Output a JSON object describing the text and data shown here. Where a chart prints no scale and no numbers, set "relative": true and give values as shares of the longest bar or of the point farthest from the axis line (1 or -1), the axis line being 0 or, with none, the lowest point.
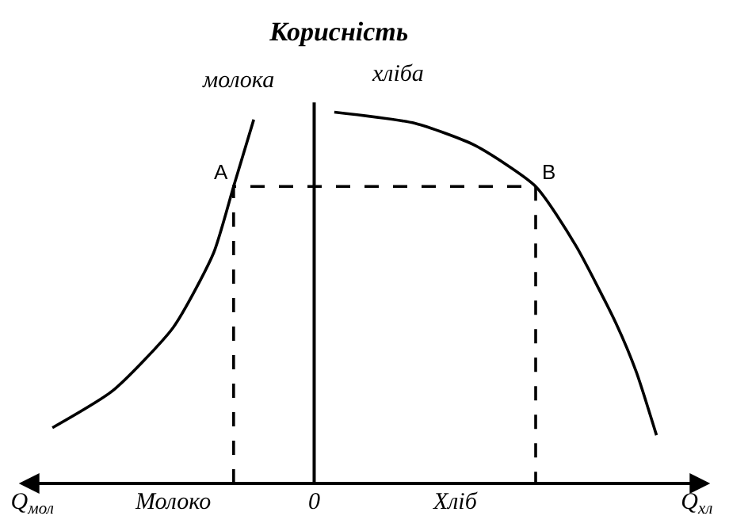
{
  "chart_data": {
    "type": "line",
    "title": "Корисність",
    "relative": true,
    "legend": false,
    "marker": "none",
    "grid": false,
    "categories": [
      "Q$_{мол}$",
      null,
      null,
      null,
      null,
      null,
      null,
      "Молоко",
      null,
      null,
      null,
      null,
      null,
      null,
      "0",
      null,
      null,
      null,
      null,
      null,
      null,
      "Хліб",
      null,
      null,
      null,
      null,
      null,
      null,
      null,
      null,
      null,
      null,
      null,
      "Q$_{хл}$"
    ],
    "series": [
      {
        "name": "молока",
        "color": "#000000",
        "values": [
          null,
          0.15,
          null,
          null,
          0.25,
          null,
          null,
          0.42,
          null,
          0.62,
          0.8,
          0.98,
          null,
          null,
          null,
          null,
          null,
          null,
          null,
          null,
          null,
          null,
          null,
          null,
          null,
          null,
          null,
          null,
          null,
          null,
          null,
          null,
          null,
          null
        ]
      },
      {
        "name": "хліба",
        "color": "#000000",
        "values": [
          null,
          null,
          null,
          null,
          null,
          null,
          null,
          null,
          null,
          null,
          null,
          null,
          null,
          null,
          null,
          1.0,
          null,
          null,
          null,
          0.97,
          null,
          null,
          0.91,
          null,
          null,
          0.8,
          null,
          0.64,
          null,
          0.43,
          0.3,
          0.13,
          null,
          null
        ]
      },
      {
        "type": "step",
        "color": "#000000",
        "line_style": "dashed",
        "values": [
          null,
          null,
          null,
          null,
          null,
          null,
          null,
          null,
          null,
          null,
          0,
          0.8,
          0.8,
          0.8,
          0.8,
          0.8,
          0.8,
          0.8,
          0.8,
          0.8,
          0.8,
          0.8,
          0.8,
          0.8,
          0.8,
          0.8,
          0,
          null,
          null,
          null,
          null,
          null,
          null,
          null
        ]
      }
    ],
    "ref_lines": [
      {
        "axis": "x",
        "value": "0",
        "color": "#000000"
      }
    ],
    "annotations": [
      "A",
      "B"
    ]
  }
}
